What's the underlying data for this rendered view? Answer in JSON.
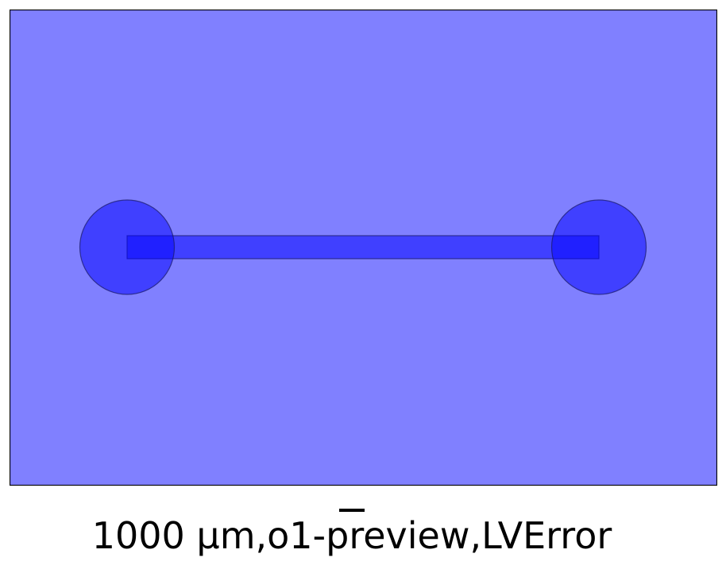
{
  "figure": {
    "caption": "1000 µm,o1-preview,LVError",
    "colors": {
      "background_fill": "#8080ff",
      "frame_stroke": "#000000",
      "pad_fill": "#0000ff",
      "pad_opacity": "0.5",
      "channel_fill": "#0000ff",
      "channel_opacity": "0.5",
      "shape_stroke": "#1a1a66"
    },
    "shapes": {
      "left_pad": "circular-pad",
      "right_pad": "circular-pad",
      "channel": "rectangular-channel"
    }
  }
}
